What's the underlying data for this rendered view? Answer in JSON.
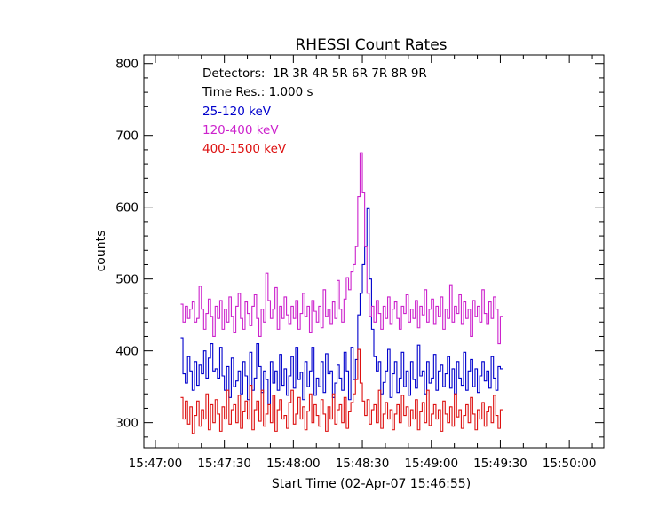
{
  "chart_data": {
    "type": "line",
    "title": "RHESSI Count Rates",
    "xlabel": "Start Time (02-Apr-07 15:46:55)",
    "ylabel": "counts",
    "x_range_seconds_after_start": [
      0,
      200
    ],
    "ylim": [
      265,
      812
    ],
    "x_ticks": [
      "15:47:00",
      "15:47:30",
      "15:48:00",
      "15:48:30",
      "15:49:00",
      "15:49:30",
      "15:50:00"
    ],
    "y_ticks": [
      300,
      400,
      500,
      600,
      700,
      800
    ],
    "annotations": {
      "detectors": "Detectors:  1R 3R 4R 5R 6R 7R 8R 9R",
      "time_res": "Time Res.: 1.000 s"
    },
    "series": [
      {
        "name": "25-120 keV",
        "color": "#0000cc",
        "time_res_s": 1.0,
        "start_s": 16.0,
        "values": [
          418,
          368,
          355,
          392,
          372,
          345,
          385,
          352,
          380,
          368,
          400,
          362,
          390,
          410,
          372,
          375,
          362,
          405,
          365,
          345,
          378,
          335,
          390,
          350,
          358,
          372,
          340,
          385,
          365,
          332,
          398,
          345,
          362,
          410,
          378,
          342,
          372,
          360,
          325,
          385,
          355,
          372,
          345,
          395,
          352,
          375,
          338,
          365,
          392,
          348,
          405,
          360,
          370,
          332,
          385,
          350,
          372,
          405,
          338,
          362,
          350,
          385,
          342,
          396,
          368,
          372,
          335,
          355,
          380,
          362,
          345,
          398,
          372,
          332,
          405,
          360,
          388,
          450,
          480,
          520,
          545,
          598,
          500,
          430,
          392,
          372,
          385,
          340,
          356,
          372,
          402,
          335,
          368,
          385,
          342,
          362,
          398,
          350,
          372,
          338,
          385,
          360,
          348,
          408,
          365,
          372,
          340,
          385,
          355,
          362,
          395,
          345,
          372,
          380,
          350,
          368,
          392,
          348,
          375,
          340,
          385,
          362,
          352,
          398,
          345,
          372,
          388,
          350,
          375,
          342,
          365,
          385,
          358,
          372,
          348,
          392,
          362,
          345,
          378,
          375
        ]
      },
      {
        "name": "120-400 keV",
        "color": "#cc22cc",
        "time_res_s": 1.0,
        "start_s": 16.0,
        "values": [
          465,
          440,
          462,
          445,
          458,
          468,
          440,
          445,
          490,
          458,
          430,
          452,
          472,
          448,
          420,
          462,
          445,
          470,
          430,
          458,
          440,
          475,
          448,
          425,
          462,
          480,
          445,
          430,
          468,
          452,
          435,
          462,
          478,
          445,
          420,
          458,
          440,
          508,
          470,
          445,
          458,
          488,
          430,
          462,
          445,
          475,
          450,
          438,
          462,
          445,
          470,
          430,
          452,
          480,
          448,
          462,
          425,
          470,
          455,
          440,
          462,
          432,
          485,
          448,
          458,
          438,
          468,
          445,
          498,
          458,
          440,
          472,
          502,
          485,
          510,
          520,
          545,
          615,
          676,
          620,
          545,
          480,
          448,
          462,
          440,
          470,
          452,
          430,
          462,
          445,
          475,
          438,
          458,
          468,
          445,
          430,
          462,
          452,
          478,
          440,
          458,
          445,
          470,
          432,
          462,
          450,
          485,
          440,
          458,
          472,
          438,
          462,
          448,
          475,
          430,
          458,
          445,
          492,
          440,
          462,
          452,
          478,
          438,
          468,
          445,
          458,
          420,
          470,
          448,
          462,
          440,
          485,
          452,
          438,
          468,
          445,
          475,
          458,
          410,
          448
        ]
      },
      {
        "name": "400-1500 keV",
        "color": "#dd1111",
        "time_res_s": 1.0,
        "start_s": 16.0,
        "values": [
          335,
          305,
          330,
          298,
          322,
          285,
          310,
          330,
          295,
          318,
          305,
          340,
          290,
          325,
          300,
          332,
          312,
          288,
          322,
          305,
          345,
          298,
          318,
          325,
          300,
          338,
          292,
          315,
          330,
          305,
          352,
          290,
          318,
          330,
          302,
          345,
          295,
          312,
          325,
          300,
          338,
          288,
          318,
          332,
          305,
          310,
          292,
          328,
          345,
          298,
          312,
          335,
          305,
          322,
          290,
          316,
          340,
          300,
          325,
          310,
          295,
          332,
          312,
          288,
          322,
          305,
          340,
          298,
          318,
          325,
          300,
          335,
          292,
          315,
          328,
          340,
          360,
          402,
          355,
          330,
          310,
          332,
          298,
          318,
          325,
          300,
          345,
          292,
          312,
          328,
          305,
          318,
          290,
          312,
          325,
          300,
          338,
          310,
          322,
          295,
          318,
          305,
          332,
          290,
          315,
          328,
          300,
          345,
          296,
          312,
          325,
          305,
          318,
          288,
          330,
          312,
          300,
          322,
          295,
          340,
          308,
          318,
          292,
          310,
          325,
          300,
          335,
          312,
          290,
          318,
          305,
          328,
          295,
          315,
          322,
          300,
          338,
          310,
          292,
          318
        ]
      }
    ],
    "legend": "top-left inside plot"
  }
}
